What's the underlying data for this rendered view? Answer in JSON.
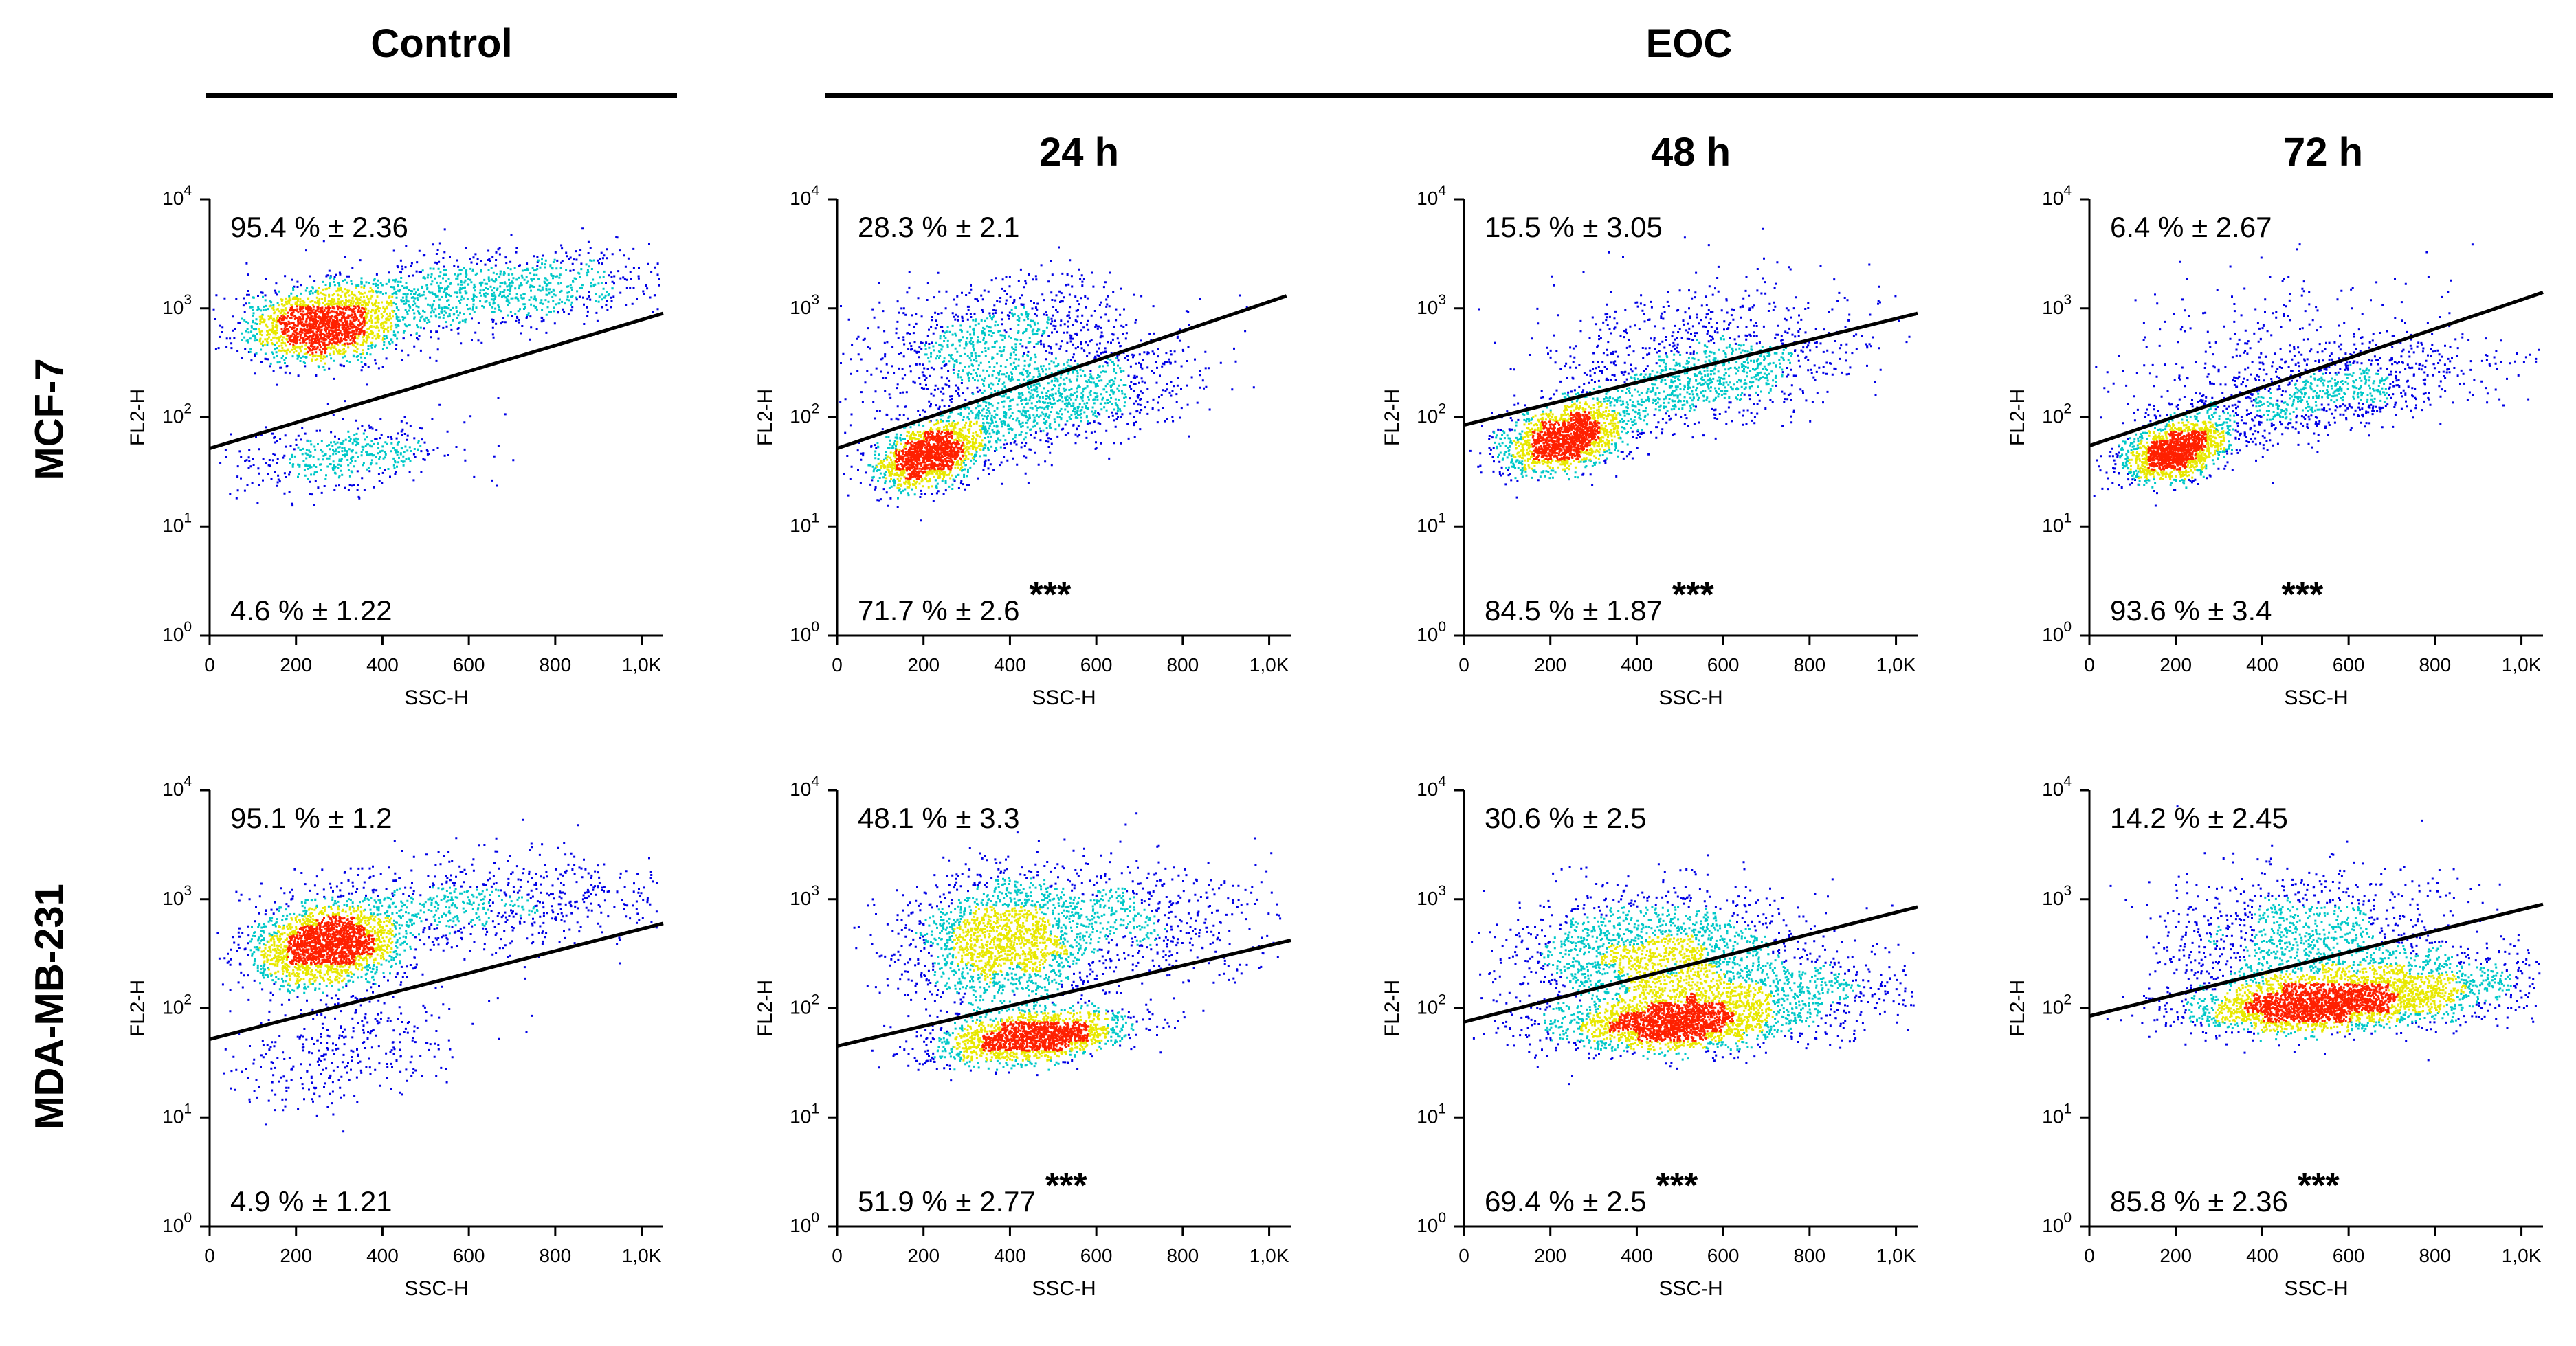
{
  "headers": {
    "control": "Control",
    "eoc": "EOC",
    "time_24": "24 h",
    "time_48": "48 h",
    "time_72": "72 h"
  },
  "rows": {
    "mcf7": "MCF-7",
    "mda": "MDA-MB-231"
  },
  "colors": {
    "low": "#0000e6",
    "mid": "#00c8c8",
    "high": "#e8e800",
    "peak": "#ff2000",
    "gate": "#000000"
  },
  "chart_data": [
    {
      "type": "scatter",
      "title": "Control",
      "row": "MCF-7",
      "xlabel": "SSC-H",
      "ylabel": "FL2-H",
      "xticks": [
        "0",
        "200",
        "400",
        "600",
        "800",
        "1,0K"
      ],
      "yticks": [
        "10^0",
        "10^1",
        "10^2",
        "10^3",
        "10^4"
      ],
      "xlim": [
        0,
        1050
      ],
      "ylim_log10": [
        0,
        4
      ],
      "upper_label": "95.4 % ± 2.36",
      "lower_label": "4.6 % ± 1.22",
      "significance": "",
      "gate_line": {
        "x": [
          0,
          1050
        ],
        "y": [
          52,
          900
        ]
      },
      "populations": [
        {
          "cx": 260,
          "cy": 700,
          "sx": 90,
          "sy": 0.17,
          "n": 1700,
          "tilt": 0.25
        },
        {
          "cx": 600,
          "cy": 1400,
          "sx": 230,
          "sy": 0.18,
          "n": 1100,
          "tilt": 0.35
        },
        {
          "cx": 300,
          "cy": 45,
          "sx": 130,
          "sy": 0.16,
          "n": 450,
          "tilt": 0.5
        }
      ]
    },
    {
      "type": "scatter",
      "title": "24 h",
      "row": "MCF-7",
      "xlabel": "SSC-H",
      "ylabel": "FL2-H",
      "xticks": [
        "0",
        "200",
        "400",
        "600",
        "800",
        "1,0K"
      ],
      "yticks": [
        "10^0",
        "10^1",
        "10^2",
        "10^3",
        "10^4"
      ],
      "xlim": [
        0,
        1050
      ],
      "ylim_log10": [
        0,
        4
      ],
      "upper_label": "28.3 % ± 2.1",
      "lower_label": "71.7 % ± 2.6",
      "significance": "***",
      "gate_line": {
        "x": [
          0,
          1040
        ],
        "y": [
          52,
          1300
        ]
      },
      "populations": [
        {
          "cx": 210,
          "cy": 45,
          "sx": 60,
          "sy": 0.14,
          "n": 1400,
          "tilt": 0.9
        },
        {
          "cx": 480,
          "cy": 130,
          "sx": 170,
          "sy": 0.22,
          "n": 1100,
          "tilt": 0.9
        },
        {
          "cx": 370,
          "cy": 500,
          "sx": 170,
          "sy": 0.28,
          "n": 900,
          "tilt": 0.5
        }
      ]
    },
    {
      "type": "scatter",
      "title": "48 h",
      "row": "MCF-7",
      "xlabel": "SSC-H",
      "ylabel": "FL2-H",
      "xticks": [
        "0",
        "200",
        "400",
        "600",
        "800",
        "1,0K"
      ],
      "yticks": [
        "10^0",
        "10^1",
        "10^2",
        "10^3",
        "10^4"
      ],
      "xlim": [
        0,
        1050
      ],
      "ylim_log10": [
        0,
        4
      ],
      "upper_label": "15.5 % ± 3.05",
      "lower_label": "84.5 % ± 1.87",
      "significance": "***",
      "gate_line": {
        "x": [
          0,
          1050
        ],
        "y": [
          85,
          900
        ]
      },
      "populations": [
        {
          "cx": 230,
          "cy": 65,
          "sx": 70,
          "sy": 0.14,
          "n": 1600,
          "tilt": 0.8
        },
        {
          "cx": 520,
          "cy": 190,
          "sx": 180,
          "sy": 0.2,
          "n": 900,
          "tilt": 0.8
        },
        {
          "cx": 520,
          "cy": 550,
          "sx": 180,
          "sy": 0.28,
          "n": 450,
          "tilt": 0.4
        }
      ]
    },
    {
      "type": "scatter",
      "title": "72 h",
      "row": "MCF-7",
      "xlabel": "SSC-H",
      "ylabel": "FL2-H",
      "xticks": [
        "0",
        "200",
        "400",
        "600",
        "800",
        "1,0K"
      ],
      "yticks": [
        "10^0",
        "10^1",
        "10^2",
        "10^3",
        "10^4"
      ],
      "xlim": [
        0,
        1050
      ],
      "ylim_log10": [
        0,
        4
      ],
      "upper_label": "6.4 % ± 2.67",
      "lower_label": "93.6 % ± 3.4",
      "significance": "***",
      "gate_line": {
        "x": [
          0,
          1050
        ],
        "y": [
          55,
          1400
        ]
      },
      "populations": [
        {
          "cx": 200,
          "cy": 50,
          "sx": 60,
          "sy": 0.13,
          "n": 1600,
          "tilt": 0.9
        },
        {
          "cx": 520,
          "cy": 160,
          "sx": 200,
          "sy": 0.2,
          "n": 1000,
          "tilt": 0.8
        },
        {
          "cx": 420,
          "cy": 500,
          "sx": 200,
          "sy": 0.3,
          "n": 250,
          "tilt": 0.4
        }
      ]
    },
    {
      "type": "scatter",
      "title": "Control",
      "row": "MDA-MB-231",
      "xlabel": "SSC-H",
      "ylabel": "FL2-H",
      "xticks": [
        "0",
        "200",
        "400",
        "600",
        "800",
        "1,0K"
      ],
      "yticks": [
        "10^0",
        "10^1",
        "10^2",
        "10^3",
        "10^4"
      ],
      "xlim": [
        0,
        1050
      ],
      "ylim_log10": [
        0,
        4
      ],
      "upper_label": "95.1 % ± 1.2",
      "lower_label": "4.9 % ± 1.21",
      "significance": "",
      "gate_line": {
        "x": [
          0,
          1050
        ],
        "y": [
          52,
          600
        ]
      },
      "populations": [
        {
          "cx": 270,
          "cy": 380,
          "sx": 85,
          "sy": 0.18,
          "n": 2200,
          "tilt": 0.3
        },
        {
          "cx": 600,
          "cy": 900,
          "sx": 220,
          "sy": 0.22,
          "n": 800,
          "tilt": 0.2
        },
        {
          "cx": 300,
          "cy": 40,
          "sx": 140,
          "sy": 0.25,
          "n": 350,
          "tilt": 0.4
        }
      ]
    },
    {
      "type": "scatter",
      "title": "24 h",
      "row": "MDA-MB-231",
      "xlabel": "SSC-H",
      "ylabel": "FL2-H",
      "xticks": [
        "0",
        "200",
        "400",
        "600",
        "800",
        "1,0K"
      ],
      "yticks": [
        "10^0",
        "10^1",
        "10^2",
        "10^3",
        "10^4"
      ],
      "xlim": [
        0,
        1050
      ],
      "ylim_log10": [
        0,
        4
      ],
      "upper_label": "48.1 % ± 3.3",
      "lower_label": "51.9 % ± 2.77",
      "significance": "***",
      "gate_line": {
        "x": [
          0,
          1050
        ],
        "y": [
          45,
          420
        ]
      },
      "populations": [
        {
          "cx": 450,
          "cy": 55,
          "sx": 110,
          "sy": 0.11,
          "n": 1800,
          "tilt": 0.4
        },
        {
          "cx": 380,
          "cy": 400,
          "sx": 110,
          "sy": 0.32,
          "n": 1700,
          "tilt": 0.1
        },
        {
          "cx": 650,
          "cy": 650,
          "sx": 180,
          "sy": 0.3,
          "n": 700,
          "tilt": 0.1
        }
      ]
    },
    {
      "type": "scatter",
      "title": "48 h",
      "row": "MDA-MB-231",
      "xlabel": "SSC-H",
      "ylabel": "FL2-H",
      "xticks": [
        "0",
        "200",
        "400",
        "600",
        "800",
        "1,0K"
      ],
      "yticks": [
        "10^0",
        "10^1",
        "10^2",
        "10^3",
        "10^4"
      ],
      "xlim": [
        0,
        1050
      ],
      "ylim_log10": [
        0,
        4
      ],
      "upper_label": "30.6 % ± 2.5",
      "lower_label": "69.4 % ± 2.5",
      "significance": "***",
      "gate_line": {
        "x": [
          0,
          1050
        ],
        "y": [
          75,
          850
        ]
      },
      "populations": [
        {
          "cx": 480,
          "cy": 75,
          "sx": 130,
          "sy": 0.13,
          "n": 2000,
          "tilt": 0.2
        },
        {
          "cx": 450,
          "cy": 300,
          "sx": 170,
          "sy": 0.3,
          "n": 1800,
          "tilt": 0.1
        },
        {
          "cx": 700,
          "cy": 130,
          "sx": 180,
          "sy": 0.2,
          "n": 700,
          "tilt": 0.2
        }
      ]
    },
    {
      "type": "scatter",
      "title": "72 h",
      "row": "MDA-MB-231",
      "xlabel": "SSC-H",
      "ylabel": "FL2-H",
      "xticks": [
        "0",
        "200",
        "400",
        "600",
        "800",
        "1,0K"
      ],
      "yticks": [
        "10^0",
        "10^1",
        "10^2",
        "10^3",
        "10^4"
      ],
      "xlim": [
        0,
        1050
      ],
      "ylim_log10": [
        0,
        4
      ],
      "upper_label": "14.2 % ± 2.45",
      "lower_label": "85.8 % ± 2.36",
      "significance": "***",
      "gate_line": {
        "x": [
          0,
          1050
        ],
        "y": [
          85,
          900
        ]
      },
      "populations": [
        {
          "cx": 520,
          "cy": 110,
          "sx": 140,
          "sy": 0.12,
          "n": 2300,
          "tilt": 0.2
        },
        {
          "cx": 500,
          "cy": 400,
          "sx": 170,
          "sy": 0.32,
          "n": 1200,
          "tilt": 0.0
        },
        {
          "cx": 760,
          "cy": 160,
          "sx": 150,
          "sy": 0.16,
          "n": 800,
          "tilt": 0.2
        }
      ]
    }
  ]
}
